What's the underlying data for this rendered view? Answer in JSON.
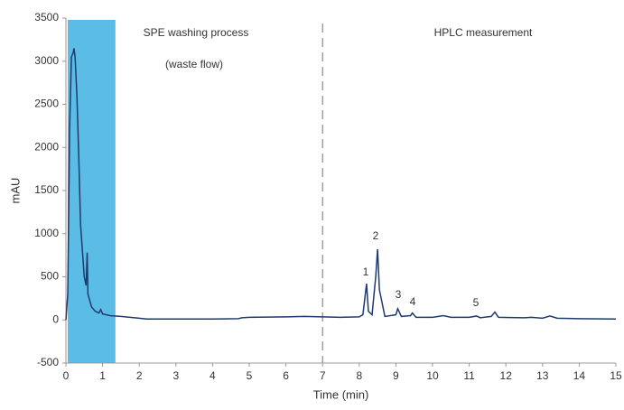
{
  "chart_data": {
    "type": "line",
    "xlabel": "Time (min)",
    "ylabel": "mAU",
    "annotations": [
      "SPE washing process",
      "(waste flow)",
      "HPLC measurement"
    ],
    "peak_labels": [
      "1",
      "2",
      "3",
      "4",
      "5"
    ],
    "shaded_region": [
      0.05,
      1.35
    ],
    "shaded_color": "#5bbde6",
    "vline": 7,
    "x": [
      0,
      0.05,
      0.1,
      0.15,
      0.2,
      0.22,
      0.25,
      0.3,
      0.35,
      0.4,
      0.45,
      0.5,
      0.55,
      0.58,
      0.6,
      0.7,
      0.8,
      0.9,
      0.95,
      1.0,
      1.2,
      1.5,
      2.0,
      2.2,
      3,
      4,
      4.7,
      4.8,
      5,
      6,
      6.5,
      7,
      7.5,
      8,
      8.1,
      8.2,
      8.25,
      8.35,
      8.45,
      8.5,
      8.55,
      8.7,
      9,
      9.05,
      9.15,
      9.4,
      9.45,
      9.55,
      10,
      10.3,
      10.5,
      11,
      11.2,
      11.3,
      11.6,
      11.7,
      11.8,
      12.5,
      12.7,
      13,
      13.2,
      13.4,
      14,
      15
    ],
    "series": [
      {
        "color": "#1f3a6e",
        "values": [
          0,
          300,
          2200,
          3050,
          3100,
          3150,
          3050,
          2600,
          1900,
          1100,
          800,
          500,
          400,
          780,
          300,
          150,
          100,
          80,
          120,
          70,
          50,
          40,
          20,
          10,
          10,
          10,
          15,
          25,
          30,
          35,
          40,
          35,
          30,
          35,
          60,
          420,
          100,
          60,
          500,
          820,
          350,
          40,
          60,
          130,
          40,
          50,
          80,
          30,
          30,
          50,
          30,
          30,
          45,
          25,
          40,
          90,
          30,
          25,
          30,
          20,
          45,
          20,
          15,
          10
        ]
      }
    ],
    "xlim": [
      0,
      15
    ],
    "xticks": [
      0,
      1,
      2,
      3,
      4,
      5,
      6,
      7,
      8,
      9,
      10,
      11,
      12,
      13,
      14,
      15
    ],
    "ylim": [
      -500,
      3500
    ],
    "yticks": [
      -500,
      0,
      500,
      1000,
      1500,
      2000,
      2500,
      3000,
      3500
    ]
  }
}
